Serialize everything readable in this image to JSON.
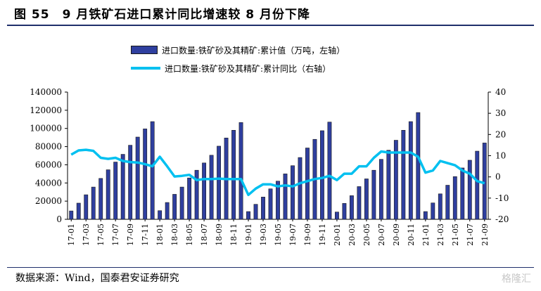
{
  "title": "图 55　9 月铁矿石进口累计同比增速较 8 月份下降",
  "source": "数据来源：Wind，国泰君安证券研究",
  "watermark": "格隆汇",
  "legend": {
    "bar": "进口数量:铁矿砂及其精矿:累计值（万吨，左轴）",
    "line": "进口数量:铁矿砂及其精矿:累计同比（右轴）"
  },
  "colors": {
    "bar": "#2f3f9f",
    "bar_edge": "#1a1a1a",
    "line": "#00c0f0",
    "title_rule": "#1f2f6b"
  },
  "chart_data": {
    "type": "bar+line",
    "x": [
      "17-01",
      "17-02",
      "17-03",
      "17-04",
      "17-05",
      "17-06",
      "17-07",
      "17-08",
      "17-09",
      "17-10",
      "17-11",
      "17-12",
      "18-01",
      "18-02",
      "18-03",
      "18-04",
      "18-05",
      "18-06",
      "18-07",
      "18-08",
      "18-09",
      "18-10",
      "18-11",
      "18-12",
      "19-01",
      "19-02",
      "19-03",
      "19-04",
      "19-05",
      "19-06",
      "19-07",
      "19-08",
      "19-09",
      "19-10",
      "19-11",
      "19-12",
      "20-01",
      "20-02",
      "20-03",
      "20-04",
      "20-05",
      "20-06",
      "20-07",
      "20-08",
      "20-09",
      "20-10",
      "20-11",
      "20-12",
      "21-01",
      "21-02",
      "21-03",
      "21-04",
      "21-05",
      "21-06",
      "21-07",
      "21-08",
      "21-09"
    ],
    "x_tick_labels": [
      "17-01",
      "17-03",
      "17-05",
      "17-07",
      "17-09",
      "17-11",
      "18-01",
      "18-03",
      "18-05",
      "18-07",
      "18-09",
      "18-11",
      "19-01",
      "19-03",
      "19-05",
      "19-07",
      "19-09",
      "19-11",
      "20-01",
      "20-03",
      "20-05",
      "20-07",
      "20-09",
      "20-11",
      "21-01",
      "21-03",
      "21-05",
      "21-07",
      "21-09"
    ],
    "series": [
      {
        "name": "进口数量:铁矿砂及其精矿:累计值（万吨，左轴）",
        "type": "bar",
        "axis": "left",
        "values": [
          9200,
          17800,
          27000,
          35500,
          45000,
          54500,
          63000,
          71500,
          81500,
          90500,
          99500,
          107500,
          9500,
          18500,
          27500,
          35500,
          45500,
          54000,
          62000,
          70500,
          80500,
          89500,
          98000,
          106500,
          8500,
          16500,
          24500,
          33500,
          42000,
          50000,
          59000,
          68000,
          78500,
          88000,
          97500,
          107000,
          8000,
          17500,
          26000,
          36000,
          44500,
          54000,
          66000,
          76000,
          87000,
          98000,
          107500,
          117500,
          8500,
          18000,
          28000,
          37500,
          47000,
          56500,
          65000,
          75000,
          84000
        ]
      },
      {
        "name": "进口数量:铁矿砂及其精矿:累计同比（右轴）",
        "type": "line",
        "axis": "right",
        "values": [
          10.5,
          12.5,
          12.8,
          12.3,
          9.0,
          8.5,
          9.0,
          7.5,
          7.0,
          6.8,
          6.0,
          5.0,
          9.5,
          5.0,
          0.2,
          0.5,
          1.0,
          -1.5,
          -1.0,
          -1.0,
          -0.8,
          -1.0,
          -1.0,
          -1.0,
          -8.5,
          -5.5,
          -3.5,
          -3.5,
          -4.5,
          -4.0,
          -4.5,
          -3.0,
          -2.0,
          -1.0,
          -0.5,
          0.5,
          -1.5,
          1.5,
          1.5,
          5.0,
          5.0,
          9.0,
          12.0,
          11.5,
          11.5,
          11.5,
          11.5,
          9.5,
          2.0,
          3.0,
          7.5,
          6.5,
          5.5,
          3.0,
          1.5,
          -2.0,
          -3.0
        ]
      }
    ],
    "y_left": {
      "min": 0,
      "max": 140000,
      "ticks": [
        0,
        20000,
        40000,
        60000,
        80000,
        100000,
        120000,
        140000
      ]
    },
    "y_right": {
      "min": -20,
      "max": 40,
      "ticks": [
        -20,
        -10,
        0,
        10,
        20,
        30,
        40
      ]
    },
    "grid": false,
    "legend_position": "top-center"
  }
}
